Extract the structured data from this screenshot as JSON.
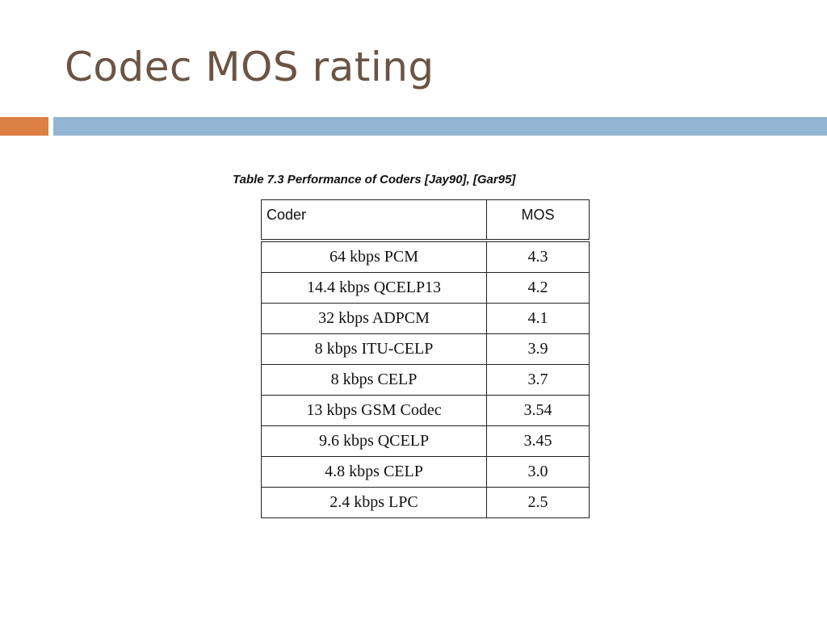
{
  "slide": {
    "title": "Codec MOS rating"
  },
  "table": {
    "caption": "Table 7.3 Performance of Coders [Jay90], [Gar95]",
    "headers": {
      "coder": "Coder",
      "mos": "MOS"
    },
    "rows": [
      {
        "coder": "64 kbps PCM",
        "mos": "4.3"
      },
      {
        "coder": "14.4 kbps QCELP13",
        "mos": "4.2"
      },
      {
        "coder": "32 kbps ADPCM",
        "mos": "4.1"
      },
      {
        "coder": "8 kbps ITU-CELP",
        "mos": "3.9"
      },
      {
        "coder": "8 kbps CELP",
        "mos": "3.7"
      },
      {
        "coder": "13 kbps GSM Codec",
        "mos": "3.54"
      },
      {
        "coder": "9.6 kbps QCELP",
        "mos": "3.45"
      },
      {
        "coder": "4.8 kbps CELP",
        "mos": "3.0"
      },
      {
        "coder": "2.4 kbps LPC",
        "mos": "2.5"
      }
    ]
  },
  "colors": {
    "title": "#6b5444",
    "accent_orange": "#dc8043",
    "accent_blue": "#93b5d4"
  }
}
